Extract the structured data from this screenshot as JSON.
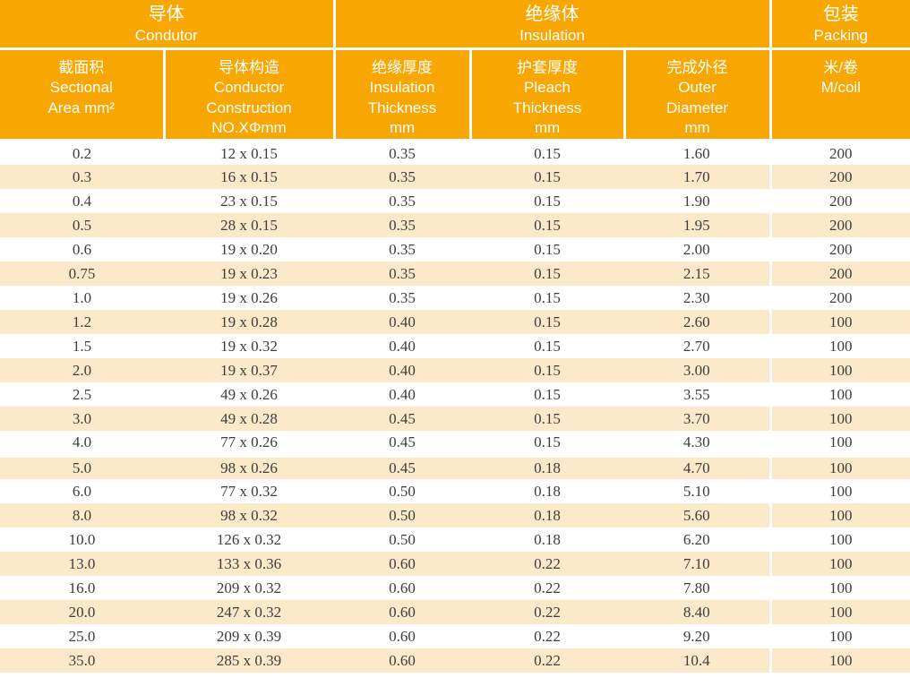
{
  "colors": {
    "header_bg": "#F8A702",
    "row_alt_bg": "#FBE9C9",
    "row_bg": "#FFFFFF",
    "header_text": "#FFFFFF",
    "data_text": "#3D3D3D"
  },
  "header_groups": [
    {
      "zh": "导体",
      "en": "Condutor"
    },
    {
      "zh": "绝缘体",
      "en": "Insulation"
    },
    {
      "zh": "包装",
      "en": "Packing"
    }
  ],
  "columns": [
    {
      "key": "sectional-area",
      "lines": [
        "截面积",
        "Sectional",
        "Area mm²"
      ]
    },
    {
      "key": "conductor-construction",
      "lines": [
        "导体构造",
        "Conductor",
        "Construction",
        "NO.XΦmm"
      ]
    },
    {
      "key": "insulation-thickness",
      "lines": [
        "绝缘厚度",
        "Insulation",
        "Thickness",
        "mm"
      ]
    },
    {
      "key": "pleach-thickness",
      "lines": [
        "护套厚度",
        "Pleach",
        "Thickness",
        "mm"
      ]
    },
    {
      "key": "outer-diameter",
      "lines": [
        "完成外径",
        "Outer",
        "Diameter",
        "mm"
      ]
    },
    {
      "key": "m-per-coil",
      "lines": [
        "米/卷",
        "M/coil"
      ]
    }
  ],
  "rows": [
    [
      "0.2",
      "12 x 0.15",
      "0.35",
      "0.15",
      "1.60",
      "200"
    ],
    [
      "0.3",
      "16 x 0.15",
      "0.35",
      "0.15",
      "1.70",
      "200"
    ],
    [
      "0.4",
      "23 x 0.15",
      "0.35",
      "0.15",
      "1.90",
      "200"
    ],
    [
      "0.5",
      "28 x 0.15",
      "0.35",
      "0.15",
      "1.95",
      "200"
    ],
    [
      "0.6",
      "19 x 0.20",
      "0.35",
      "0.15",
      "2.00",
      "200"
    ],
    [
      "0.75",
      "19 x 0.23",
      "0.35",
      "0.15",
      "2.15",
      "200"
    ],
    [
      "1.0",
      "19 x 0.26",
      "0.35",
      "0.15",
      "2.30",
      "200"
    ],
    [
      "1.2",
      "19 x 0.28",
      "0.40",
      "0.15",
      "2.60",
      "100"
    ],
    [
      "1.5",
      "19 x 0.32",
      "0.40",
      "0.15",
      "2.70",
      "100"
    ],
    [
      "2.0",
      "19 x 0.37",
      "0.40",
      "0.15",
      "3.00",
      "100"
    ],
    [
      "2.5",
      "49 x 0.26",
      "0.40",
      "0.15",
      "3.55",
      "100"
    ],
    [
      "3.0",
      "49 x 0.28",
      "0.45",
      "0.15",
      "3.70",
      "100"
    ],
    [
      "4.0",
      "77 x 0.26",
      "0.45",
      "0.15",
      "4.30",
      "100"
    ],
    [
      "5.0",
      "98 x 0.26",
      "0.45",
      "0.18",
      "4.70",
      "100"
    ],
    [
      "6.0",
      "77 x 0.32",
      "0.50",
      "0.18",
      "5.10",
      "100"
    ],
    [
      "8.0",
      "98 x 0.32",
      "0.50",
      "0.18",
      "5.60",
      "100"
    ],
    [
      "10.0",
      "126 x 0.32",
      "0.50",
      "0.18",
      "6.20",
      "100"
    ],
    [
      "13.0",
      "133 x 0.36",
      "0.60",
      "0.22",
      "7.10",
      "100"
    ],
    [
      "16.0",
      "209 x 0.32",
      "0.60",
      "0.22",
      "7.80",
      "100"
    ],
    [
      "20.0",
      "247 x 0.32",
      "0.60",
      "0.22",
      "8.40",
      "100"
    ],
    [
      "25.0",
      "209 x 0.39",
      "0.60",
      "0.22",
      "9.20",
      "100"
    ],
    [
      "35.0",
      "285 x 0.39",
      "0.60",
      "0.22",
      "10.4",
      "100"
    ]
  ]
}
